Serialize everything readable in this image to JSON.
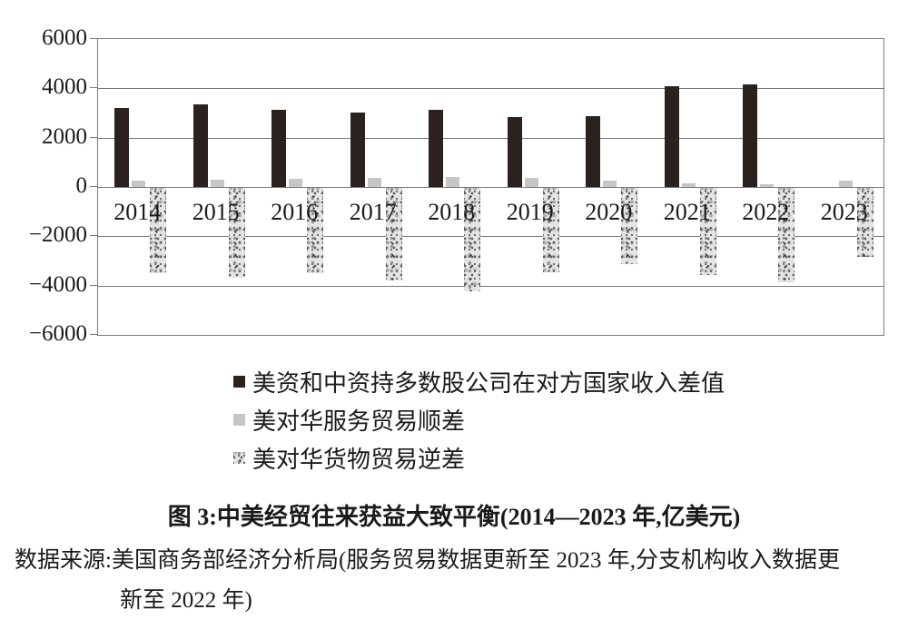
{
  "figure": {
    "caption_title": "图 3:中美经贸往来获益大致平衡(2014—2023 年,亿美元)",
    "source_line1": "数据来源:美国商务部经济分析局(服务贸易数据更新至 2023 年,分支机构收入数据更",
    "source_line2": "新至 2022 年)"
  },
  "colors": {
    "bar_black": "#2b2220",
    "bar_gray": "#c6c6c6",
    "speckle_base": "#e4e4e4",
    "axis_line": "#7a7a7a",
    "text": "#1a1a1a",
    "background": "#ffffff"
  },
  "chart_data": {
    "type": "bar",
    "title": "图 3:中美经贸往来获益大致平衡(2014—2023 年,亿美元)",
    "unit": "亿美元",
    "categories": [
      "2014",
      "2015",
      "2016",
      "2017",
      "2018",
      "2019",
      "2020",
      "2021",
      "2022",
      "2023"
    ],
    "series": [
      {
        "id": "income_gap",
        "name": "美资和中资持多数股公司在对方国家收入差值",
        "style": "solid-black",
        "values": [
          3200,
          3350,
          3120,
          3020,
          3120,
          2820,
          2860,
          4080,
          4160,
          null
        ]
      },
      {
        "id": "services_surplus",
        "name": "美对华服务贸易顺差",
        "style": "solid-gray",
        "values": [
          260,
          300,
          345,
          385,
          390,
          370,
          245,
          155,
          110,
          265
        ]
      },
      {
        "id": "goods_deficit",
        "name": "美对华货物贸易逆差",
        "style": "speckled",
        "values": [
          -3450,
          -3660,
          -3470,
          -3750,
          -4180,
          -3430,
          -3100,
          -3550,
          -3820,
          -2790
        ]
      }
    ],
    "xlabel": "",
    "ylabel": "",
    "ylim": [
      -6000,
      6000
    ],
    "ytick_interval": 2000,
    "yticks": [
      "6000",
      "4000",
      "2000",
      "0",
      "−2000",
      "−4000",
      "−6000"
    ],
    "grid": true,
    "legend_position": "below-chart-left"
  }
}
